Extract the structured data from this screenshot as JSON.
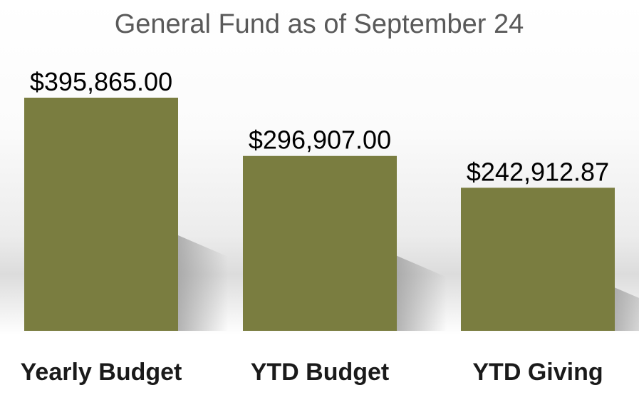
{
  "colors": {
    "bar": "#7a7d40",
    "bar_shadow": "#b5b5b5",
    "title": "#595959",
    "label": "#000000"
  },
  "chart_data": {
    "type": "bar",
    "title": "General Fund as of September 24",
    "categories": [
      "Yearly Budget",
      "YTD Budget",
      "YTD Giving"
    ],
    "values": [
      395865.0,
      296907.0,
      242912.87
    ],
    "value_labels": [
      "$395,865.00",
      "$296,907.00",
      "$242,912.87"
    ],
    "xlabel": "",
    "ylabel": "",
    "ylim": [
      0,
      395865
    ],
    "grid": false,
    "legend": "none"
  }
}
